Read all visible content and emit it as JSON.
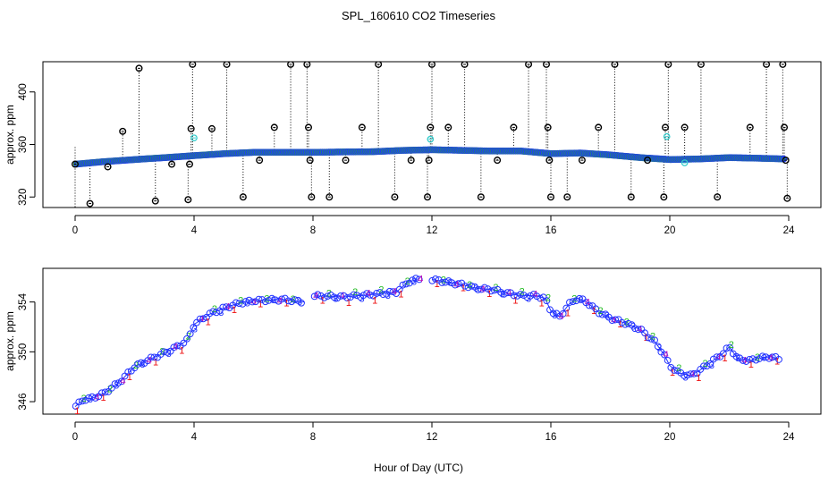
{
  "figure": {
    "title": "SPL_160610  CO2 Timeseries",
    "xlabel": "Hour of Day (UTC)"
  },
  "chart_data": [
    {
      "type": "scatter",
      "name": "raw-panel",
      "ylabel": "approx. ppm",
      "xlim": [
        0,
        24
      ],
      "ylim": [
        312,
        423
      ],
      "xticks": [
        "0",
        "4",
        "8",
        "12",
        "16",
        "20",
        "24"
      ],
      "yticks": [
        "320",
        "360",
        "400"
      ],
      "xtick_values": [
        0,
        4,
        8,
        12,
        16,
        20,
        24
      ],
      "ytick_values": [
        320,
        360,
        400
      ],
      "series_colors": {
        "cyan": "#33cccc",
        "green": "#22bb22",
        "blue": "#2233ff",
        "black": "#000000"
      },
      "trend": [
        [
          0.0,
          345
        ],
        [
          0.5,
          346
        ],
        [
          1.0,
          347
        ],
        [
          2.0,
          348.5
        ],
        [
          3.0,
          350
        ],
        [
          4.0,
          351.5
        ],
        [
          5.0,
          353
        ],
        [
          6.0,
          354
        ],
        [
          7.0,
          354
        ],
        [
          8.0,
          354
        ],
        [
          9.0,
          354.3
        ],
        [
          10.0,
          354.5
        ],
        [
          11.0,
          355.5
        ],
        [
          12.0,
          356
        ],
        [
          13.0,
          355.5
        ],
        [
          14.0,
          355
        ],
        [
          15.0,
          355
        ],
        [
          16.0,
          353
        ],
        [
          17.0,
          353.5
        ],
        [
          18.0,
          352
        ],
        [
          19.0,
          350
        ],
        [
          20.0,
          348.5
        ],
        [
          21.0,
          349
        ],
        [
          22.0,
          350
        ],
        [
          23.0,
          349.5
        ],
        [
          23.8,
          349
        ]
      ],
      "outliers": [
        [
          0.0,
          345
        ],
        [
          0.5,
          315
        ],
        [
          1.1,
          343
        ],
        [
          1.6,
          370
        ],
        [
          2.15,
          418
        ],
        [
          2.7,
          317
        ],
        [
          3.25,
          345
        ],
        [
          3.8,
          318
        ],
        [
          3.85,
          345
        ],
        [
          3.9,
          372
        ],
        [
          3.95,
          421
        ],
        [
          4.6,
          372
        ],
        [
          5.1,
          421
        ],
        [
          5.65,
          320
        ],
        [
          6.2,
          348
        ],
        [
          6.7,
          373
        ],
        [
          7.25,
          421
        ],
        [
          7.8,
          421
        ],
        [
          7.85,
          373
        ],
        [
          7.9,
          348
        ],
        [
          7.95,
          320
        ],
        [
          8.55,
          320
        ],
        [
          9.1,
          348
        ],
        [
          9.65,
          373
        ],
        [
          10.2,
          421
        ],
        [
          10.75,
          320
        ],
        [
          11.3,
          348
        ],
        [
          11.85,
          320
        ],
        [
          11.9,
          348
        ],
        [
          11.95,
          373
        ],
        [
          12.0,
          421
        ],
        [
          12.55,
          373
        ],
        [
          13.1,
          421
        ],
        [
          13.65,
          320
        ],
        [
          14.2,
          348
        ],
        [
          14.75,
          373
        ],
        [
          15.25,
          421
        ],
        [
          15.85,
          421
        ],
        [
          15.9,
          373
        ],
        [
          15.95,
          348
        ],
        [
          16.0,
          320
        ],
        [
          16.55,
          320
        ],
        [
          17.05,
          348
        ],
        [
          17.6,
          373
        ],
        [
          18.15,
          421
        ],
        [
          18.7,
          320
        ],
        [
          19.25,
          348
        ],
        [
          19.8,
          320
        ],
        [
          19.85,
          373
        ],
        [
          19.95,
          421
        ],
        [
          20.5,
          373
        ],
        [
          21.05,
          421
        ],
        [
          21.6,
          320
        ],
        [
          22.7,
          373
        ],
        [
          23.25,
          421
        ],
        [
          23.8,
          421
        ],
        [
          23.85,
          373
        ],
        [
          23.9,
          348
        ],
        [
          23.95,
          319
        ]
      ],
      "cyan_points": [
        [
          4.0,
          365
        ],
        [
          11.95,
          364
        ],
        [
          19.9,
          366
        ],
        [
          20.5,
          346
        ]
      ]
    },
    {
      "type": "scatter",
      "name": "zoom-panel",
      "ylabel": "approx. ppm",
      "xlim": [
        -1,
        25
      ],
      "ylim": [
        345.0,
        356.7
      ],
      "xticks": [
        "0",
        "4",
        "8",
        "12",
        "16",
        "20",
        "24"
      ],
      "yticks": [
        "346",
        "350",
        "354"
      ],
      "xtick_values": [
        0,
        4,
        8,
        12,
        16,
        20,
        24
      ],
      "ytick_values": [
        346,
        350,
        354
      ],
      "series_colors": {
        "1": "#ee1111",
        "2": "#22bb22",
        "3": "#2233ff",
        "4": "#bb11bb",
        "circle": "#2233ff",
        "line": "#2233ff"
      },
      "trend": [
        [
          0.0,
          345.6
        ],
        [
          0.3,
          346.2
        ],
        [
          0.6,
          346.3
        ],
        [
          1.0,
          346.7
        ],
        [
          1.5,
          347.6
        ],
        [
          2.0,
          348.8
        ],
        [
          2.5,
          349.4
        ],
        [
          3.0,
          349.9
        ],
        [
          3.5,
          350.5
        ],
        [
          3.8,
          351.0
        ],
        [
          4.0,
          352.2
        ],
        [
          4.5,
          353.0
        ],
        [
          5.0,
          353.5
        ],
        [
          5.5,
          353.9
        ],
        [
          6.0,
          354.1
        ],
        [
          7.0,
          354.2
        ],
        [
          7.7,
          354.0
        ],
        [
          8.0,
          354.5
        ],
        [
          9.0,
          354.4
        ],
        [
          10.0,
          354.6
        ],
        [
          10.8,
          354.8
        ],
        [
          11.2,
          355.6
        ],
        [
          11.6,
          355.9
        ],
        [
          12.0,
          355.8
        ],
        [
          12.5,
          355.6
        ],
        [
          13.0,
          355.4
        ],
        [
          13.5,
          355.1
        ],
        [
          14.0,
          355.0
        ],
        [
          14.5,
          354.7
        ],
        [
          15.0,
          354.5
        ],
        [
          15.5,
          354.5
        ],
        [
          15.8,
          354.3
        ],
        [
          16.0,
          353.3
        ],
        [
          16.3,
          352.8
        ],
        [
          16.6,
          353.8
        ],
        [
          16.9,
          354.3
        ],
        [
          17.2,
          354.0
        ],
        [
          17.6,
          353.2
        ],
        [
          18.0,
          352.7
        ],
        [
          18.5,
          352.3
        ],
        [
          19.0,
          351.8
        ],
        [
          19.5,
          350.8
        ],
        [
          19.8,
          349.8
        ],
        [
          20.0,
          348.9
        ],
        [
          20.3,
          348.3
        ],
        [
          20.7,
          348.1
        ],
        [
          21.0,
          348.5
        ],
        [
          21.4,
          349.2
        ],
        [
          21.8,
          349.9
        ],
        [
          22.0,
          350.4
        ],
        [
          22.3,
          349.4
        ],
        [
          22.7,
          349.3
        ],
        [
          23.0,
          349.5
        ],
        [
          23.4,
          349.6
        ],
        [
          23.7,
          349.4
        ]
      ],
      "gaps": [
        [
          7.7,
          8.0
        ],
        [
          11.6,
          12.0
        ]
      ]
    }
  ]
}
